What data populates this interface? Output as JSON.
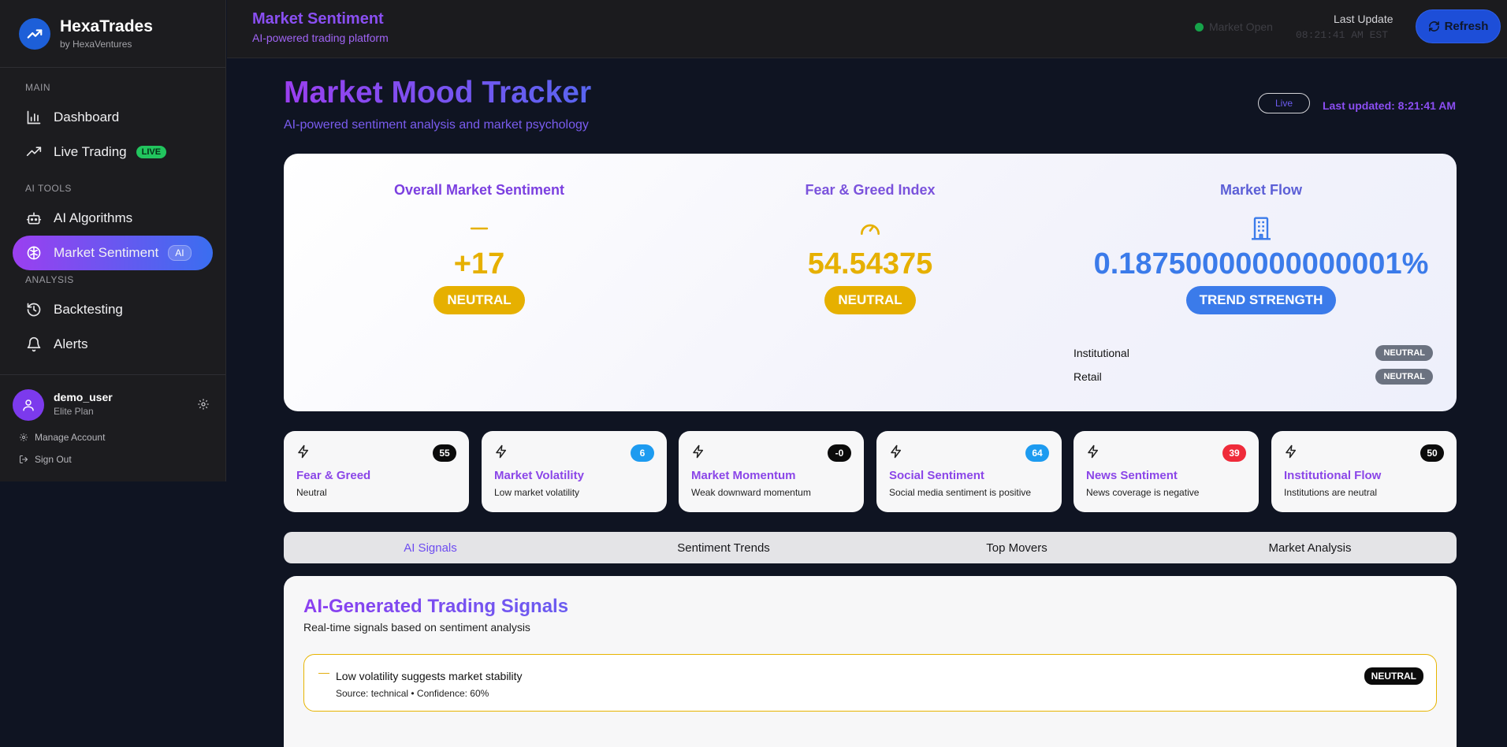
{
  "brand": {
    "name": "HexaTrades",
    "sub": "by HexaVentures"
  },
  "sidebar": {
    "sections": {
      "main": "MAIN",
      "ai_tools": "AI TOOLS",
      "analysis": "ANALYSIS"
    },
    "items": [
      {
        "label": "Dashboard",
        "icon": "bar-chart-icon"
      },
      {
        "label": "Live Trading",
        "icon": "trend-icon",
        "badge": "LIVE"
      },
      {
        "label": "AI Algorithms",
        "icon": "robot-icon"
      },
      {
        "label": "Market Sentiment",
        "icon": "brain-icon",
        "badge": "AI",
        "active": true
      },
      {
        "label": "Backtesting",
        "icon": "history-icon"
      },
      {
        "label": "Alerts",
        "icon": "bell-icon"
      }
    ]
  },
  "user": {
    "name": "demo_user",
    "plan": "Elite Plan",
    "manage": "Manage Account",
    "signout": "Sign Out"
  },
  "topbar": {
    "title": "Market Sentiment",
    "subtitle": "AI-powered trading platform",
    "market_status": "Market Open",
    "last_update_label": "Last Update",
    "last_update_value": "08:21:41 AM EST",
    "refresh": "Refresh"
  },
  "header": {
    "title": "Market Mood Tracker",
    "subtitle": "AI-powered sentiment analysis and market psychology",
    "live": "Live",
    "updated": "Last updated: 8:21:41 AM"
  },
  "hero": {
    "sentiment": {
      "title": "Overall Market Sentiment",
      "value": "+17",
      "badge": "NEUTRAL"
    },
    "fear_greed": {
      "title": "Fear & Greed Index",
      "value": "54.54375",
      "badge": "NEUTRAL"
    },
    "flow": {
      "title": "Market Flow",
      "value": "0.18750000000000001%",
      "badge": "TREND STRENGTH",
      "rows": [
        {
          "label": "Institutional",
          "tag": "NEUTRAL"
        },
        {
          "label": "Retail",
          "tag": "NEUTRAL"
        }
      ]
    }
  },
  "metrics": [
    {
      "value": "55",
      "title": "Fear & Greed",
      "desc": "Neutral",
      "color": "#0b0b0b"
    },
    {
      "value": "6",
      "title": "Market Volatility",
      "desc": "Low market volatility",
      "color": "#1d9bf0"
    },
    {
      "value": "-0",
      "title": "Market Momentum",
      "desc": "Weak downward momentum",
      "color": "#0b0b0b"
    },
    {
      "value": "64",
      "title": "Social Sentiment",
      "desc": "Social media sentiment is positive",
      "color": "#1d9bf0"
    },
    {
      "value": "39",
      "title": "News Sentiment",
      "desc": "News coverage is negative",
      "color": "#ef2b3a"
    },
    {
      "value": "50",
      "title": "Institutional Flow",
      "desc": "Institutions are neutral",
      "color": "#0b0b0b"
    }
  ],
  "tabs": [
    "AI Signals",
    "Sentiment Trends",
    "Top Movers",
    "Market Analysis"
  ],
  "signals": {
    "title": "AI-Generated Trading Signals",
    "subtitle": "Real-time signals based on sentiment analysis",
    "items": [
      {
        "text": "Low volatility suggests market stability",
        "meta": "Source: technical • Confidence: 60%",
        "badge": "NEUTRAL"
      }
    ]
  },
  "colors": {
    "accent_purple": "#8b46e8",
    "accent_blue": "#3b7bea",
    "neutral_yellow": "#e6b000"
  }
}
